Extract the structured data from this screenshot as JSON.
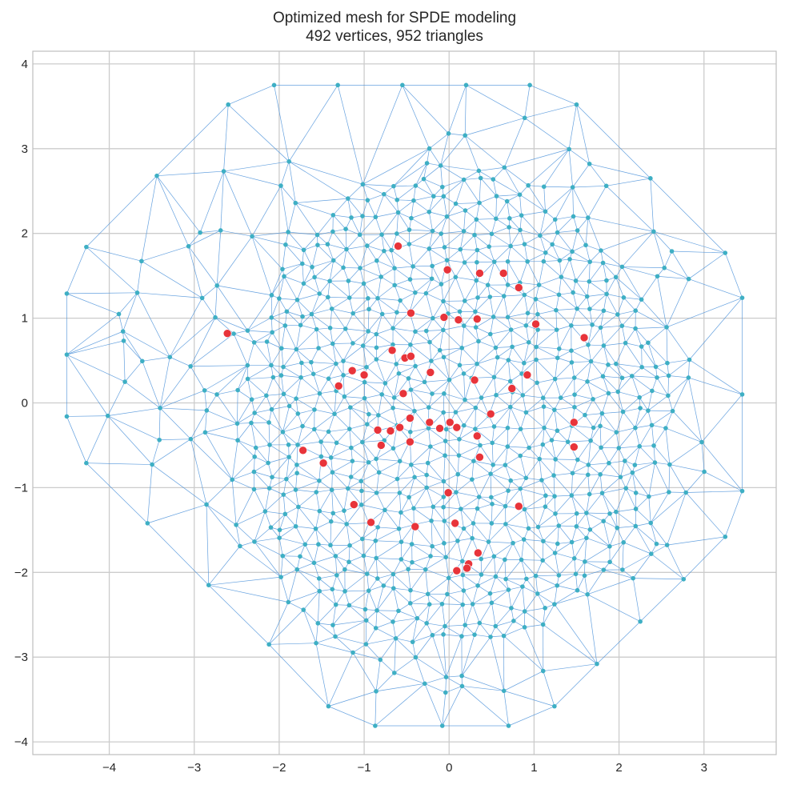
{
  "title_line1": "Optimized mesh for SPDE modeling",
  "title_line2": "492 vertices, 952 triangles",
  "chart_data": {
    "type": "scatter",
    "xlim": [
      -4.9,
      3.85
    ],
    "ylim": [
      -4.15,
      4.15
    ],
    "x_ticks": [
      -4,
      -3,
      -2,
      -1,
      0,
      1,
      2,
      3
    ],
    "x_tick_labels": [
      "−4",
      "−3",
      "−2",
      "−1",
      "0",
      "1",
      "2",
      "3"
    ],
    "y_ticks": [
      -4,
      -3,
      -2,
      -1,
      0,
      1,
      2,
      3,
      4
    ],
    "y_tick_labels": [
      "−4",
      "−3",
      "−2",
      "−1",
      "0",
      "1",
      "2",
      "3",
      "4"
    ],
    "grid": true,
    "colors": {
      "mesh_edge": "#4a90d9",
      "vertex": "#3eafc4",
      "observation": "#e8343a",
      "grid": "#cccccc",
      "frame": "#bfbfbf"
    },
    "boundary_vertices": [
      [
        -2.06,
        3.75
      ],
      [
        -1.31,
        3.75
      ],
      [
        -0.55,
        3.75
      ],
      [
        0.2,
        3.75
      ],
      [
        0.95,
        3.75
      ],
      [
        1.5,
        3.52
      ],
      [
        2.37,
        2.65
      ],
      [
        3.25,
        1.77
      ],
      [
        3.45,
        1.24
      ],
      [
        3.45,
        0.1
      ],
      [
        3.45,
        -1.04
      ],
      [
        3.25,
        -1.58
      ],
      [
        2.76,
        -2.08
      ],
      [
        2.25,
        -2.58
      ],
      [
        1.74,
        -3.08
      ],
      [
        1.24,
        -3.58
      ],
      [
        0.7,
        -3.81
      ],
      [
        -0.08,
        -3.81
      ],
      [
        -0.87,
        -3.81
      ],
      [
        -1.42,
        -3.58
      ],
      [
        -2.12,
        -2.85
      ],
      [
        -2.83,
        -2.15
      ],
      [
        -3.55,
        -1.42
      ],
      [
        -4.27,
        -0.71
      ],
      [
        -4.5,
        -0.16
      ],
      [
        -4.5,
        0.57
      ],
      [
        -4.5,
        1.29
      ],
      [
        -4.27,
        1.84
      ],
      [
        -3.44,
        2.68
      ],
      [
        -2.6,
        3.52
      ]
    ],
    "observations": [
      [
        -0.6,
        1.85
      ],
      [
        -0.02,
        1.57
      ],
      [
        0.36,
        1.53
      ],
      [
        0.64,
        1.53
      ],
      [
        0.82,
        1.36
      ],
      [
        -0.45,
        1.06
      ],
      [
        -0.06,
        1.01
      ],
      [
        0.11,
        0.98
      ],
      [
        0.33,
        0.99
      ],
      [
        1.02,
        0.93
      ],
      [
        1.59,
        0.77
      ],
      [
        -2.61,
        0.82
      ],
      [
        -0.67,
        0.62
      ],
      [
        -0.52,
        0.53
      ],
      [
        -0.45,
        0.55
      ],
      [
        -1.14,
        0.38
      ],
      [
        -1.0,
        0.33
      ],
      [
        -0.22,
        0.36
      ],
      [
        0.3,
        0.27
      ],
      [
        0.92,
        0.33
      ],
      [
        0.74,
        0.17
      ],
      [
        -1.3,
        0.2
      ],
      [
        -0.54,
        0.11
      ],
      [
        0.49,
        -0.13
      ],
      [
        -0.46,
        -0.18
      ],
      [
        -0.23,
        -0.23
      ],
      [
        -0.11,
        -0.3
      ],
      [
        0.01,
        -0.23
      ],
      [
        0.09,
        -0.29
      ],
      [
        1.47,
        -0.23
      ],
      [
        -0.84,
        -0.32
      ],
      [
        -0.69,
        -0.33
      ],
      [
        -0.58,
        -0.29
      ],
      [
        0.33,
        -0.39
      ],
      [
        -0.8,
        -0.5
      ],
      [
        -0.46,
        -0.46
      ],
      [
        1.47,
        -0.52
      ],
      [
        -1.72,
        -0.56
      ],
      [
        -1.48,
        -0.71
      ],
      [
        0.36,
        -0.64
      ],
      [
        -0.01,
        -1.06
      ],
      [
        0.82,
        -1.22
      ],
      [
        -1.12,
        -1.2
      ],
      [
        -0.92,
        -1.41
      ],
      [
        -0.4,
        -1.46
      ],
      [
        0.07,
        -1.42
      ],
      [
        0.34,
        -1.77
      ],
      [
        0.23,
        -1.9
      ],
      [
        0.21,
        -1.95
      ],
      [
        0.09,
        -1.98
      ]
    ]
  }
}
